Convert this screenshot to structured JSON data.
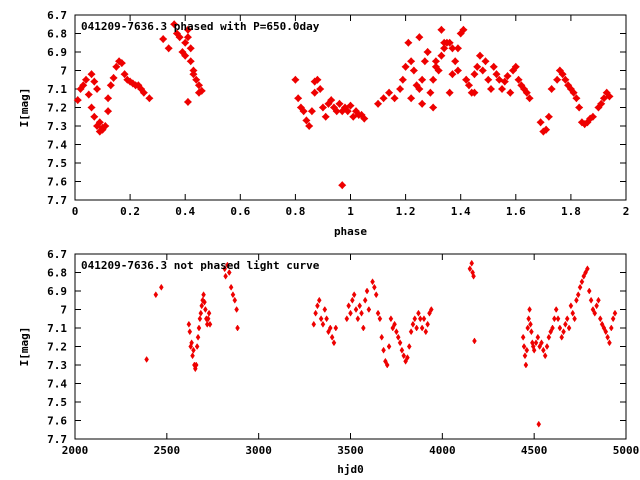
{
  "chart_data": [
    {
      "type": "scatter",
      "title": "041209-7636.3 phased with P=650.0day",
      "xlabel": "phase",
      "ylabel": "I[mag]",
      "xlim": [
        0,
        2
      ],
      "ylim": [
        6.7,
        7.7
      ],
      "y_inverted": true,
      "xticks": [
        "0",
        "0.2",
        "0.4",
        "0.6",
        "0.8",
        "1",
        "1.2",
        "1.4",
        "1.6",
        "1.8",
        "2"
      ],
      "yticks": [
        "6.7",
        "6.8",
        "6.9",
        "7",
        "7.1",
        "7.2",
        "7.3",
        "7.4",
        "7.5",
        "7.6",
        "7.7"
      ],
      "marker_color": "#ee0000",
      "series": [
        {
          "x": [
            0.01,
            0.02,
            0.03,
            0.04,
            0.05,
            0.06,
            0.06,
            0.07,
            0.07,
            0.08,
            0.08,
            0.09,
            0.09,
            0.1,
            0.1,
            0.11,
            0.12,
            0.12,
            0.13,
            0.14,
            0.15,
            0.16,
            0.17,
            0.18,
            0.19,
            0.2,
            0.21,
            0.22,
            0.23,
            0.24,
            0.25,
            0.27,
            0.32,
            0.34,
            0.36,
            0.37,
            0.38,
            0.39,
            0.4,
            0.4,
            0.41,
            0.41,
            0.42,
            0.42,
            0.43,
            0.43,
            0.44,
            0.45,
            0.45,
            0.46,
            0.41,
            0.8,
            0.81,
            0.82,
            0.83,
            0.84,
            0.85,
            0.86,
            0.87,
            0.87,
            0.88,
            0.89,
            0.9,
            0.91,
            0.92,
            0.93,
            0.94,
            0.95,
            0.96,
            0.97,
            0.98,
            0.99,
            1.0,
            1.01,
            1.02,
            1.03,
            1.04,
            1.05,
            0.97,
            1.1,
            1.12,
            1.14,
            1.16,
            1.18,
            1.19,
            1.2,
            1.21,
            1.22,
            1.23,
            1.24,
            1.25,
            1.26,
            1.27,
            1.28,
            1.29,
            1.3,
            1.31,
            1.32,
            1.33,
            1.34,
            1.35,
            1.36,
            1.37,
            1.38,
            1.39,
            1.4,
            1.41,
            1.42,
            1.43,
            1.44,
            1.45,
            1.46,
            1.47,
            1.48,
            1.49,
            1.5,
            1.51,
            1.52,
            1.53,
            1.54,
            1.55,
            1.56,
            1.57,
            1.58,
            1.59,
            1.6,
            1.61,
            1.62,
            1.63,
            1.64,
            1.65,
            1.69,
            1.7,
            1.71,
            1.72,
            1.73,
            1.75,
            1.76,
            1.77,
            1.78,
            1.79,
            1.8,
            1.81,
            1.82,
            1.83,
            1.84,
            1.85,
            1.86,
            1.87,
            1.88,
            1.9,
            1.91,
            1.92,
            1.93,
            1.94,
            1.25,
            1.28,
            1.31,
            1.34,
            1.37,
            1.22,
            1.26,
            1.3,
            1.39,
            1.42,
            1.33,
            1.36,
            1.45
          ],
          "y": [
            7.16,
            7.1,
            7.08,
            7.05,
            7.13,
            7.2,
            7.02,
            7.25,
            7.06,
            7.3,
            7.1,
            7.33,
            7.28,
            7.32,
            7.31,
            7.3,
            7.22,
            7.15,
            7.08,
            7.04,
            6.98,
            6.95,
            6.96,
            7.02,
            7.05,
            7.06,
            7.07,
            7.08,
            7.08,
            7.1,
            7.12,
            7.15,
            6.83,
            6.88,
            6.75,
            6.8,
            6.82,
            6.9,
            6.85,
            6.92,
            6.78,
            6.82,
            6.88,
            6.95,
            7.0,
            7.02,
            7.05,
            7.08,
            7.12,
            7.11,
            7.17,
            7.05,
            7.15,
            7.2,
            7.22,
            7.27,
            7.3,
            7.22,
            7.12,
            7.06,
            7.05,
            7.1,
            7.2,
            7.25,
            7.18,
            7.16,
            7.2,
            7.22,
            7.18,
            7.62,
            7.2,
            7.22,
            7.19,
            7.25,
            7.22,
            7.24,
            7.24,
            7.26,
            7.22,
            7.18,
            7.15,
            7.12,
            7.15,
            7.1,
            7.05,
            6.98,
            6.85,
            6.95,
            7.0,
            7.08,
            7.1,
            7.05,
            6.95,
            6.9,
            7.12,
            7.05,
            6.98,
            7.0,
            6.92,
            6.88,
            6.85,
            7.12,
            7.02,
            6.95,
            6.88,
            6.8,
            6.78,
            7.05,
            7.08,
            7.12,
            7.02,
            6.98,
            6.92,
            7.0,
            6.95,
            7.05,
            7.1,
            6.98,
            7.02,
            7.05,
            7.1,
            7.06,
            7.03,
            7.12,
            7.0,
            6.98,
            7.05,
            7.08,
            7.1,
            7.12,
            7.15,
            7.28,
            7.33,
            7.32,
            7.25,
            7.1,
            7.05,
            7.0,
            7.02,
            7.05,
            7.08,
            7.1,
            7.12,
            7.15,
            7.2,
            7.28,
            7.29,
            7.28,
            7.26,
            7.25,
            7.2,
            7.18,
            7.15,
            7.12,
            7.14,
            6.82,
            6.9,
            6.95,
            6.85,
            6.88,
            7.15,
            7.18,
            7.2,
            7.0,
            7.05,
            6.78,
            6.85,
            7.12
          ]
        }
      ]
    },
    {
      "type": "scatter",
      "title": "041209-7636.3 not phased light curve",
      "xlabel": "hjd0",
      "ylabel": "I[mag]",
      "xlim": [
        2000,
        5000
      ],
      "ylim": [
        6.7,
        7.7
      ],
      "y_inverted": true,
      "xticks": [
        "2000",
        "2500",
        "3000",
        "3500",
        "4000",
        "4500",
        "5000"
      ],
      "yticks": [
        "6.7",
        "6.8",
        "6.9",
        "7",
        "7.1",
        "7.2",
        "7.3",
        "7.4",
        "7.5",
        "7.6",
        "7.7"
      ],
      "marker_color": "#ee0000",
      "series": [
        {
          "x": [
            2390,
            2440,
            2470,
            2620,
            2625,
            2630,
            2635,
            2640,
            2645,
            2650,
            2655,
            2660,
            2665,
            2670,
            2675,
            2680,
            2685,
            2690,
            2695,
            2700,
            2705,
            2710,
            2715,
            2720,
            2725,
            2730,
            2735,
            2815,
            2820,
            2830,
            2840,
            2850,
            2860,
            2870,
            2880,
            2885,
            3300,
            3310,
            3320,
            3330,
            3340,
            3350,
            3360,
            3370,
            3380,
            3390,
            3400,
            3410,
            3420,
            3480,
            3490,
            3500,
            3510,
            3520,
            3530,
            3540,
            3550,
            3560,
            3570,
            3580,
            3590,
            3600,
            3620,
            3630,
            3640,
            3650,
            3660,
            3670,
            3680,
            3690,
            3700,
            3710,
            3720,
            3730,
            3740,
            3750,
            3760,
            3770,
            3780,
            3790,
            3800,
            3810,
            3820,
            3830,
            3840,
            3850,
            3860,
            3870,
            3880,
            3890,
            3900,
            3910,
            3920,
            3930,
            3940,
            4150,
            4160,
            4165,
            4170,
            4175,
            4440,
            4445,
            4450,
            4455,
            4460,
            4465,
            4470,
            4475,
            4480,
            4485,
            4490,
            4495,
            4500,
            4510,
            4520,
            4525,
            4530,
            4540,
            4550,
            4560,
            4570,
            4580,
            4590,
            4600,
            4610,
            4620,
            4630,
            4640,
            4650,
            4660,
            4670,
            4680,
            4690,
            4700,
            4710,
            4720,
            4730,
            4740,
            4750,
            4760,
            4770,
            4780,
            4790,
            4800,
            4810,
            4820,
            4830,
            4840,
            4850,
            4860,
            4870,
            4880,
            4890,
            4900,
            4910,
            4920,
            4930,
            4940
          ],
          "y": [
            7.27,
            6.92,
            6.88,
            7.08,
            7.12,
            7.2,
            7.18,
            7.25,
            7.22,
            7.3,
            7.32,
            7.3,
            7.2,
            7.15,
            7.1,
            7.05,
            7.02,
            6.98,
            6.95,
            6.92,
            6.96,
            7.0,
            7.05,
            7.08,
            7.05,
            7.02,
            7.08,
            6.78,
            6.82,
            6.76,
            6.8,
            6.88,
            6.92,
            6.95,
            7.0,
            7.1,
            7.08,
            7.02,
            6.98,
            6.95,
            7.05,
            7.08,
            7.0,
            7.05,
            7.12,
            7.1,
            7.15,
            7.18,
            7.1,
            7.05,
            6.98,
            7.02,
            6.95,
            6.92,
            7.0,
            7.05,
            6.98,
            7.02,
            7.1,
            6.95,
            6.9,
            7.0,
            6.85,
            6.88,
            6.92,
            7.02,
            7.05,
            7.15,
            7.22,
            7.28,
            7.3,
            7.2,
            7.05,
            7.1,
            7.08,
            7.12,
            7.15,
            7.18,
            7.22,
            7.25,
            7.28,
            7.26,
            7.2,
            7.12,
            7.08,
            7.05,
            7.1,
            7.02,
            7.05,
            7.1,
            7.05,
            7.12,
            7.08,
            7.02,
            7.0,
            6.78,
            6.75,
            6.8,
            6.82,
            7.17,
            7.15,
            7.2,
            7.25,
            7.3,
            7.22,
            7.1,
            7.05,
            7.0,
            7.08,
            7.12,
            7.18,
            7.2,
            7.22,
            7.18,
            7.15,
            7.62,
            7.2,
            7.18,
            7.22,
            7.25,
            7.2,
            7.15,
            7.12,
            7.1,
            7.05,
            7.0,
            7.05,
            7.1,
            7.15,
            7.12,
            7.08,
            7.05,
            7.1,
            6.98,
            7.02,
            7.05,
            6.95,
            6.92,
            6.88,
            6.85,
            6.82,
            6.8,
            6.78,
            6.9,
            6.95,
            7.0,
            7.02,
            6.98,
            6.95,
            7.05,
            7.08,
            7.1,
            7.12,
            7.15,
            7.18,
            7.1,
            7.05,
            7.02
          ]
        }
      ]
    }
  ]
}
